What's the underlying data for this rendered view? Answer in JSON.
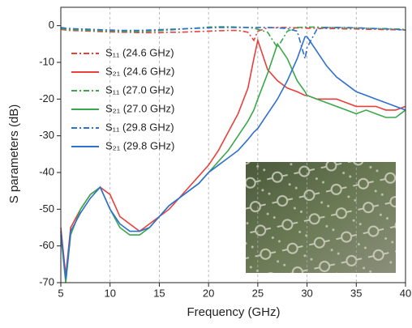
{
  "chart_data": {
    "type": "line",
    "xlabel": "Frequency (GHz)",
    "ylabel": "S parameters (dB)",
    "xlim": [
      5,
      40
    ],
    "ylim": [
      -70,
      5
    ],
    "xticks": [
      5,
      10,
      15,
      20,
      25,
      30,
      35,
      40
    ],
    "yticks": [
      -70,
      -60,
      -50,
      -40,
      -30,
      -20,
      -10,
      0
    ],
    "grid": "x",
    "legend": "upper left",
    "x": [
      5,
      5.5,
      6,
      7,
      8,
      9,
      10,
      11,
      12,
      13,
      14,
      15,
      16,
      17,
      18,
      19,
      20,
      21,
      22,
      23,
      24,
      24.6,
      25,
      26,
      27,
      28,
      29,
      29.8,
      30,
      31,
      32,
      33,
      34,
      35,
      36,
      37,
      38,
      39,
      40
    ],
    "series": [
      {
        "name": "S₁₁ (24.6 GHz)",
        "color": "#e8403c",
        "linestyle": "dashdot",
        "values": [
          -1,
          -1.2,
          -1.3,
          -1.4,
          -1.5,
          -1.6,
          -1.7,
          -1.8,
          -1.8,
          -1.9,
          -1.9,
          -1.9,
          -1.8,
          -1.8,
          -1.7,
          -1.6,
          -1.5,
          -1.4,
          -1.3,
          -1.3,
          -1.8,
          -4,
          -1.5,
          -0.6,
          -0.5,
          -0.5,
          -0.6,
          -0.6,
          -0.7,
          -0.7,
          -0.8,
          -0.8,
          -0.9,
          -0.9,
          -1,
          -1,
          -1.1,
          -1.1,
          -1.2
        ]
      },
      {
        "name": "S₂₁ (24.6 GHz)",
        "color": "#e8403c",
        "linestyle": "solid",
        "values": [
          -55,
          -68,
          -55,
          -50,
          -46,
          -44,
          -46,
          -52,
          -54,
          -56,
          -54,
          -52,
          -50,
          -47,
          -44,
          -41,
          -38,
          -34,
          -29,
          -24,
          -17,
          -9,
          -4,
          -12,
          -15,
          -17,
          -18,
          -19,
          -19,
          -20,
          -20,
          -20,
          -21,
          -22,
          -22,
          -22,
          -23,
          -23,
          -22
        ]
      },
      {
        "name": "S₁₁ (27.0 GHz)",
        "color": "#3aa84a",
        "linestyle": "dashdot",
        "values": [
          -0.8,
          -1,
          -1.1,
          -1.2,
          -1.3,
          -1.4,
          -1.5,
          -1.5,
          -1.6,
          -1.6,
          -1.5,
          -1.4,
          -1.2,
          -1,
          -0.8,
          -0.6,
          -0.4,
          -0.3,
          -0.3,
          -0.4,
          -0.5,
          -0.7,
          -1,
          -1.8,
          -6,
          -1.5,
          -0.5,
          -0.4,
          -0.4,
          -0.4,
          -0.5,
          -0.5,
          -0.6,
          -0.6,
          -0.7,
          -0.8,
          -0.8,
          -0.9,
          -1
        ]
      },
      {
        "name": "S₂₁ (27.0 GHz)",
        "color": "#3aa84a",
        "linestyle": "solid",
        "values": [
          -57,
          -70,
          -57,
          -50,
          -46,
          -44,
          -50,
          -55,
          -57,
          -57,
          -55,
          -52,
          -49,
          -47,
          -45,
          -43,
          -40,
          -37,
          -34,
          -30,
          -26,
          -23,
          -20,
          -13,
          -5,
          -9,
          -15,
          -18,
          -19,
          -20,
          -21,
          -22,
          -23,
          -24,
          -23,
          -24,
          -25,
          -25,
          -23
        ]
      },
      {
        "name": "S₁₁ (29.8 GHz)",
        "color": "#2f6fd0",
        "linestyle": "dashdot",
        "values": [
          -0.5,
          -0.7,
          -0.8,
          -0.9,
          -1,
          -1.1,
          -1.2,
          -1.3,
          -1.3,
          -1.3,
          -1.2,
          -1.1,
          -1,
          -0.9,
          -0.8,
          -0.7,
          -0.6,
          -0.5,
          -0.5,
          -0.5,
          -0.5,
          -0.5,
          -0.5,
          -0.5,
          -0.6,
          -0.8,
          -1.5,
          -9,
          -6,
          -1,
          -0.5,
          -0.5,
          -0.5,
          -0.6,
          -0.7,
          -0.8,
          -0.9,
          -1,
          -1.2
        ]
      },
      {
        "name": "S₂₁ (29.8 GHz)",
        "color": "#2f6fd0",
        "linestyle": "solid",
        "values": [
          -56,
          -69,
          -56,
          -51,
          -47,
          -44,
          -50,
          -54,
          -56,
          -56,
          -55,
          -52,
          -49,
          -47,
          -45,
          -43,
          -40,
          -38,
          -36,
          -34,
          -31,
          -29,
          -28,
          -24,
          -20,
          -15,
          -9,
          -3,
          -3,
          -7,
          -11,
          -14,
          -16,
          -18,
          -19,
          -20,
          -21,
          -22,
          -23
        ]
      }
    ]
  }
}
